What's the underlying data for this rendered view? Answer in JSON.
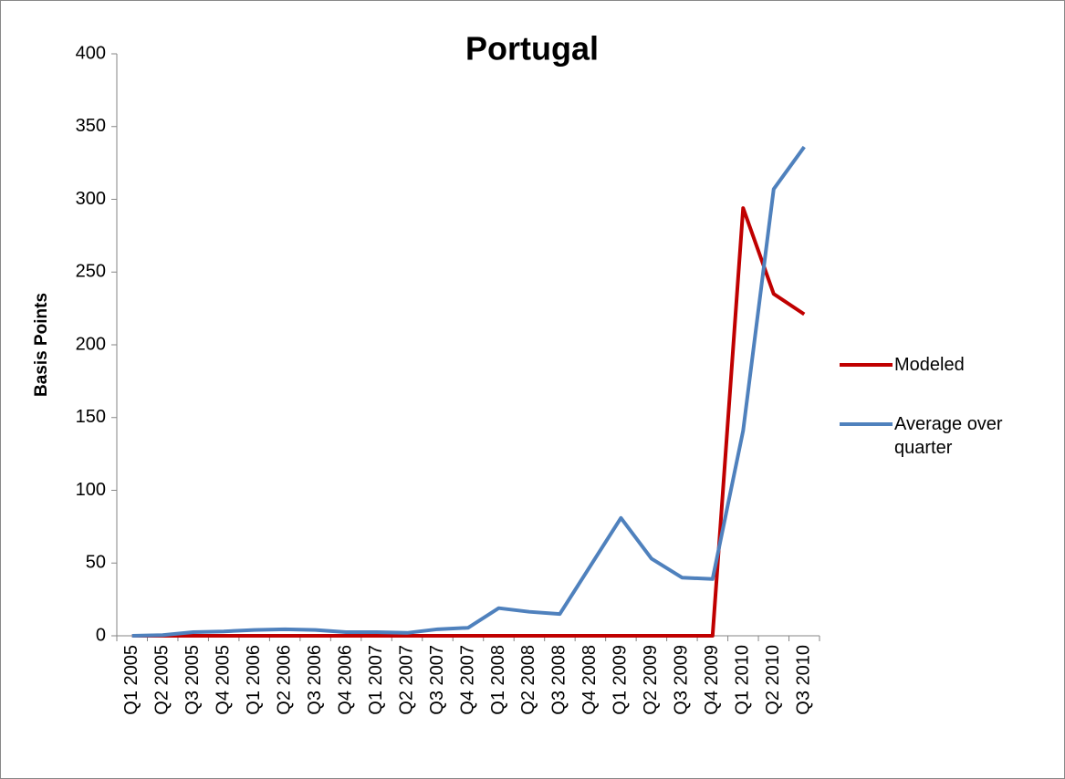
{
  "chart_data": {
    "type": "line",
    "title": "Portugal",
    "y_label": "Basis Points",
    "categories": [
      "Q1 2005",
      "Q2 2005",
      "Q3 2005",
      "Q4 2005",
      "Q1 2006",
      "Q2 2006",
      "Q3 2006",
      "Q4 2006",
      "Q1 2007",
      "Q2 2007",
      "Q3 2007",
      "Q4 2007",
      "Q1 2008",
      "Q2 2008",
      "Q3 2008",
      "Q4 2008",
      "Q1 2009",
      "Q2 2009",
      "Q3 2009",
      "Q4 2009",
      "Q1 2010",
      "Q2 2010",
      "Q3 2010"
    ],
    "series": [
      {
        "name": "Modeled",
        "color": "#c00000",
        "values": [
          0,
          0,
          0,
          0,
          0,
          0,
          0,
          0,
          0,
          0,
          0,
          0,
          0,
          0,
          0,
          0,
          0,
          0,
          0,
          0,
          294,
          235,
          221
        ]
      },
      {
        "name": "Average over quarter",
        "color": "#4f81bd",
        "values": [
          0,
          0.5,
          2.5,
          3,
          4,
          4.5,
          4,
          2.5,
          2.5,
          2,
          4.5,
          5.5,
          19,
          16.5,
          15,
          48,
          81,
          53,
          40,
          39,
          141,
          307,
          336
        ]
      }
    ],
    "ylim": [
      0,
      400
    ],
    "yticks": [
      0,
      50,
      100,
      150,
      200,
      250,
      300,
      350,
      400
    ],
    "grid": false,
    "legend": "right"
  }
}
